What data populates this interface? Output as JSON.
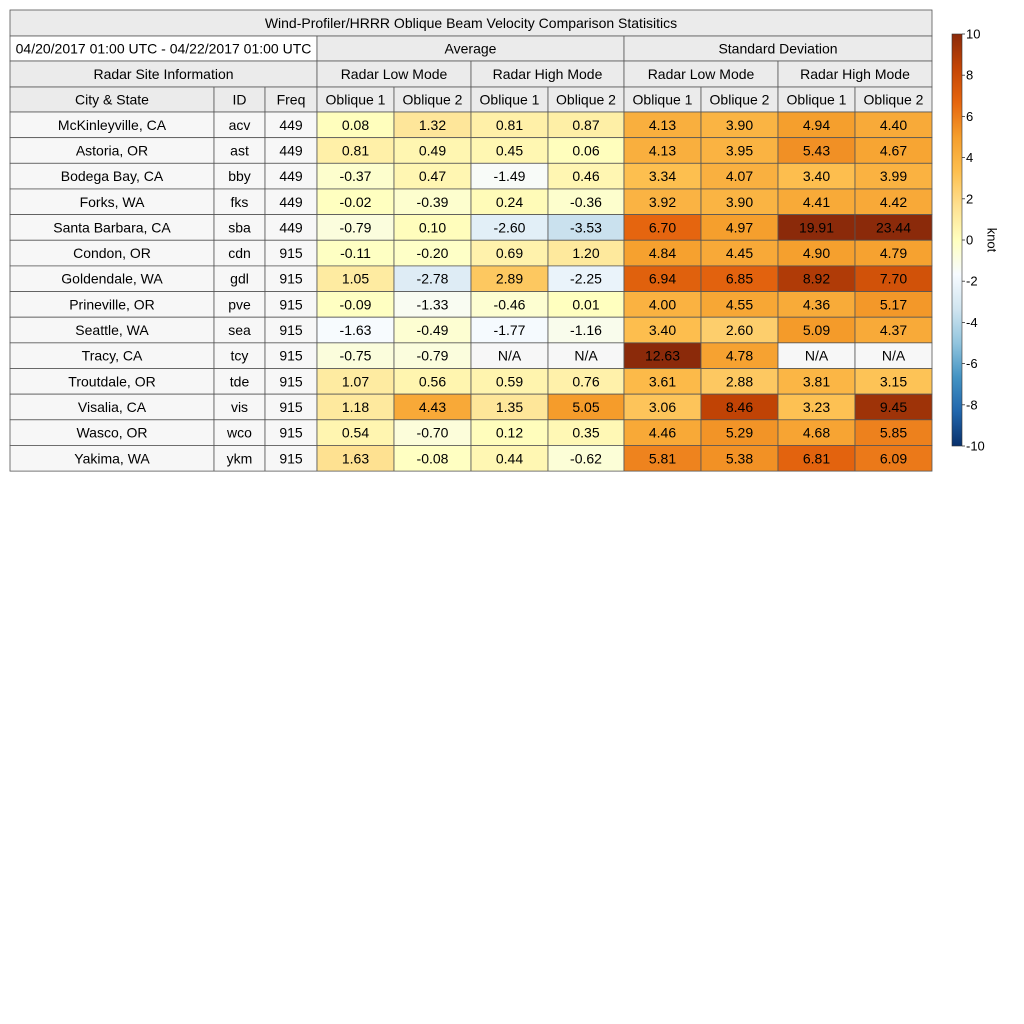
{
  "chart_data": {
    "type": "table",
    "title": "Wind-Profiler/HRRR Oblique Beam Velocity Comparison Statisitics",
    "period": "04/20/2017 01:00 UTC - 04/22/2017 01:00 UTC",
    "site_header": "Radar Site Information",
    "group_headers": [
      "Average",
      "Standard Deviation"
    ],
    "mode_headers": [
      "Radar Low Mode",
      "Radar High Mode",
      "Radar Low Mode",
      "Radar High Mode"
    ],
    "column_headers": [
      "City & State",
      "ID",
      "Freq",
      "Oblique 1",
      "Oblique 2",
      "Oblique 1",
      "Oblique 2",
      "Oblique 1",
      "Oblique 2",
      "Oblique 1",
      "Oblique 2"
    ],
    "rows": [
      {
        "city": "McKinleyville, CA",
        "id": "acv",
        "freq": "449",
        "values": [
          "0.08",
          "1.32",
          "0.81",
          "0.87",
          "4.13",
          "3.90",
          "4.94",
          "4.40"
        ]
      },
      {
        "city": "Astoria, OR",
        "id": "ast",
        "freq": "449",
        "values": [
          "0.81",
          "0.49",
          "0.45",
          "0.06",
          "4.13",
          "3.95",
          "5.43",
          "4.67"
        ]
      },
      {
        "city": "Bodega Bay, CA",
        "id": "bby",
        "freq": "449",
        "values": [
          "-0.37",
          "0.47",
          "-1.49",
          "0.46",
          "3.34",
          "4.07",
          "3.40",
          "3.99"
        ]
      },
      {
        "city": "Forks, WA",
        "id": "fks",
        "freq": "449",
        "values": [
          "-0.02",
          "-0.39",
          "0.24",
          "-0.36",
          "3.92",
          "3.90",
          "4.41",
          "4.42"
        ]
      },
      {
        "city": "Santa Barbara, CA",
        "id": "sba",
        "freq": "449",
        "values": [
          "-0.79",
          "0.10",
          "-2.60",
          "-3.53",
          "6.70",
          "4.97",
          "19.91",
          "23.44"
        ]
      },
      {
        "city": "Condon, OR",
        "id": "cdn",
        "freq": "915",
        "values": [
          "-0.11",
          "-0.20",
          "0.69",
          "1.20",
          "4.84",
          "4.45",
          "4.90",
          "4.79"
        ]
      },
      {
        "city": "Goldendale, WA",
        "id": "gdl",
        "freq": "915",
        "values": [
          "1.05",
          "-2.78",
          "2.89",
          "-2.25",
          "6.94",
          "6.85",
          "8.92",
          "7.70"
        ]
      },
      {
        "city": "Prineville, OR",
        "id": "pve",
        "freq": "915",
        "values": [
          "-0.09",
          "-1.33",
          "-0.46",
          "0.01",
          "4.00",
          "4.55",
          "4.36",
          "5.17"
        ]
      },
      {
        "city": "Seattle, WA",
        "id": "sea",
        "freq": "915",
        "values": [
          "-1.63",
          "-0.49",
          "-1.77",
          "-1.16",
          "3.40",
          "2.60",
          "5.09",
          "4.37"
        ]
      },
      {
        "city": "Tracy, CA",
        "id": "tcy",
        "freq": "915",
        "values": [
          "-0.75",
          "-0.79",
          "N/A",
          "N/A",
          "12.63",
          "4.78",
          "N/A",
          "N/A"
        ]
      },
      {
        "city": "Troutdale, OR",
        "id": "tde",
        "freq": "915",
        "values": [
          "1.07",
          "0.56",
          "0.59",
          "0.76",
          "3.61",
          "2.88",
          "3.81",
          "3.15"
        ]
      },
      {
        "city": "Visalia, CA",
        "id": "vis",
        "freq": "915",
        "values": [
          "1.18",
          "4.43",
          "1.35",
          "5.05",
          "3.06",
          "8.46",
          "3.23",
          "9.45"
        ]
      },
      {
        "city": "Wasco, OR",
        "id": "wco",
        "freq": "915",
        "values": [
          "0.54",
          "-0.70",
          "0.12",
          "0.35",
          "4.46",
          "5.29",
          "4.68",
          "5.85"
        ]
      },
      {
        "city": "Yakima, WA",
        "id": "ykm",
        "freq": "915",
        "values": [
          "1.63",
          "-0.08",
          "0.44",
          "-0.62",
          "5.81",
          "5.38",
          "6.81",
          "6.09"
        ]
      }
    ],
    "colorbar": {
      "label": "knot",
      "range": [
        -10,
        10
      ],
      "ticks": [
        10,
        8,
        6,
        4,
        2,
        0,
        -2,
        -4,
        -6,
        -8,
        -10
      ],
      "colors": [
        "#08306b",
        "#2166ac",
        "#4393c3",
        "#92c5de",
        "#d1e5f0",
        "#f7fbff",
        "#ffffbf",
        "#fee090",
        "#fdbf4f",
        "#f59e2c",
        "#e6660f",
        "#c44505",
        "#8b2a0a"
      ],
      "na_color": "#f7f7f7"
    },
    "colors": {
      "header_bg": "#ebebeb",
      "site_bg": "#f7f7f7",
      "border": "#555555"
    }
  }
}
